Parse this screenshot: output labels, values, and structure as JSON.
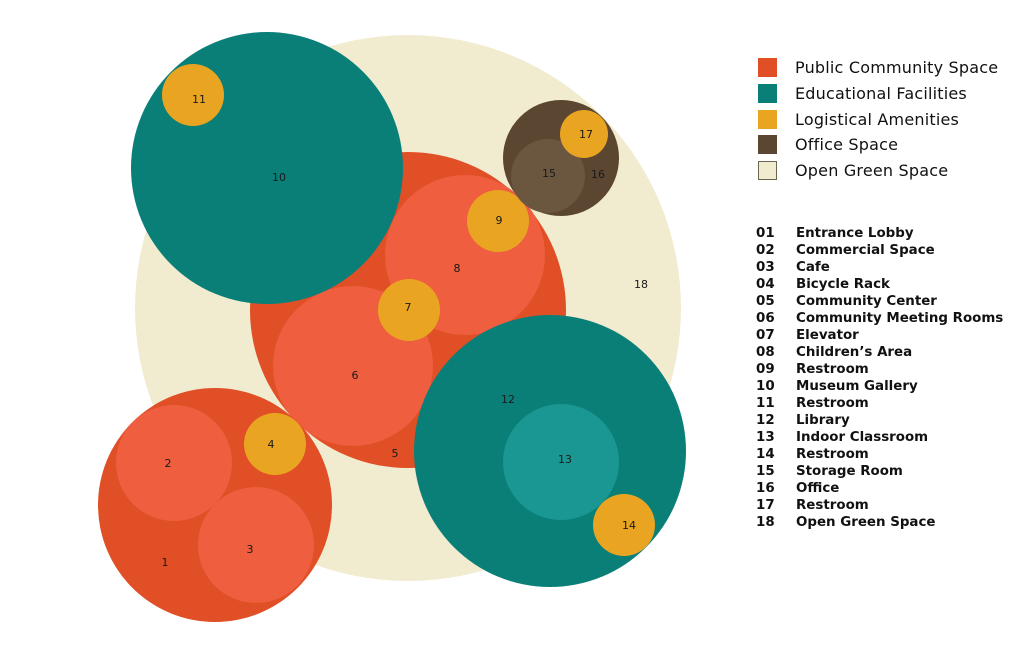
{
  "colors": {
    "public": "#e14f26",
    "public_light": "#ee5e3f",
    "educational": "#0a7f78",
    "educational_light": "#1a9693",
    "logistical": "#e9a521",
    "office": "#5a4631",
    "office_light": "#6b5740",
    "green": "#f1ebcf"
  },
  "legend": [
    {
      "label": "Public Community Space",
      "color": "#e14f26"
    },
    {
      "label": "Educational Facilities",
      "color": "#0a7f78"
    },
    {
      "label": "Logistical Amenities",
      "color": "#e9a521"
    },
    {
      "label": "Office Space",
      "color": "#5a4631"
    },
    {
      "label": "Open Green Space",
      "color": "#f1ebcf"
    }
  ],
  "spaces": [
    {
      "num": "01",
      "name": "Entrance Lobby"
    },
    {
      "num": "02",
      "name": "Commercial Space"
    },
    {
      "num": "03",
      "name": "Cafe"
    },
    {
      "num": "04",
      "name": "Bicycle Rack"
    },
    {
      "num": "05",
      "name": "Community Center"
    },
    {
      "num": "06",
      "name": "Community Meeting Rooms"
    },
    {
      "num": "07",
      "name": "Elevator"
    },
    {
      "num": "08",
      "name": "Children’s Area"
    },
    {
      "num": "09",
      "name": "Restroom"
    },
    {
      "num": "10",
      "name": "Museum Gallery"
    },
    {
      "num": "11",
      "name": "Restroom"
    },
    {
      "num": "12",
      "name": "Library"
    },
    {
      "num": "13",
      "name": "Indoor Classroom"
    },
    {
      "num": "14",
      "name": "Restroom"
    },
    {
      "num": "15",
      "name": "Storage Room"
    },
    {
      "num": "16",
      "name": "Office"
    },
    {
      "num": "17",
      "name": "Restroom"
    },
    {
      "num": "18",
      "name": "Open Green Space"
    }
  ],
  "diagram_labels": {
    "n1": "1",
    "n2": "2",
    "n3": "3",
    "n4": "4",
    "n5": "5",
    "n6": "6",
    "n7": "7",
    "n8": "8",
    "n9": "9",
    "n10": "10",
    "n11": "11",
    "n12": "12",
    "n13": "13",
    "n14": "14",
    "n15": "15",
    "n16": "16",
    "n17": "17",
    "n18": "18"
  }
}
